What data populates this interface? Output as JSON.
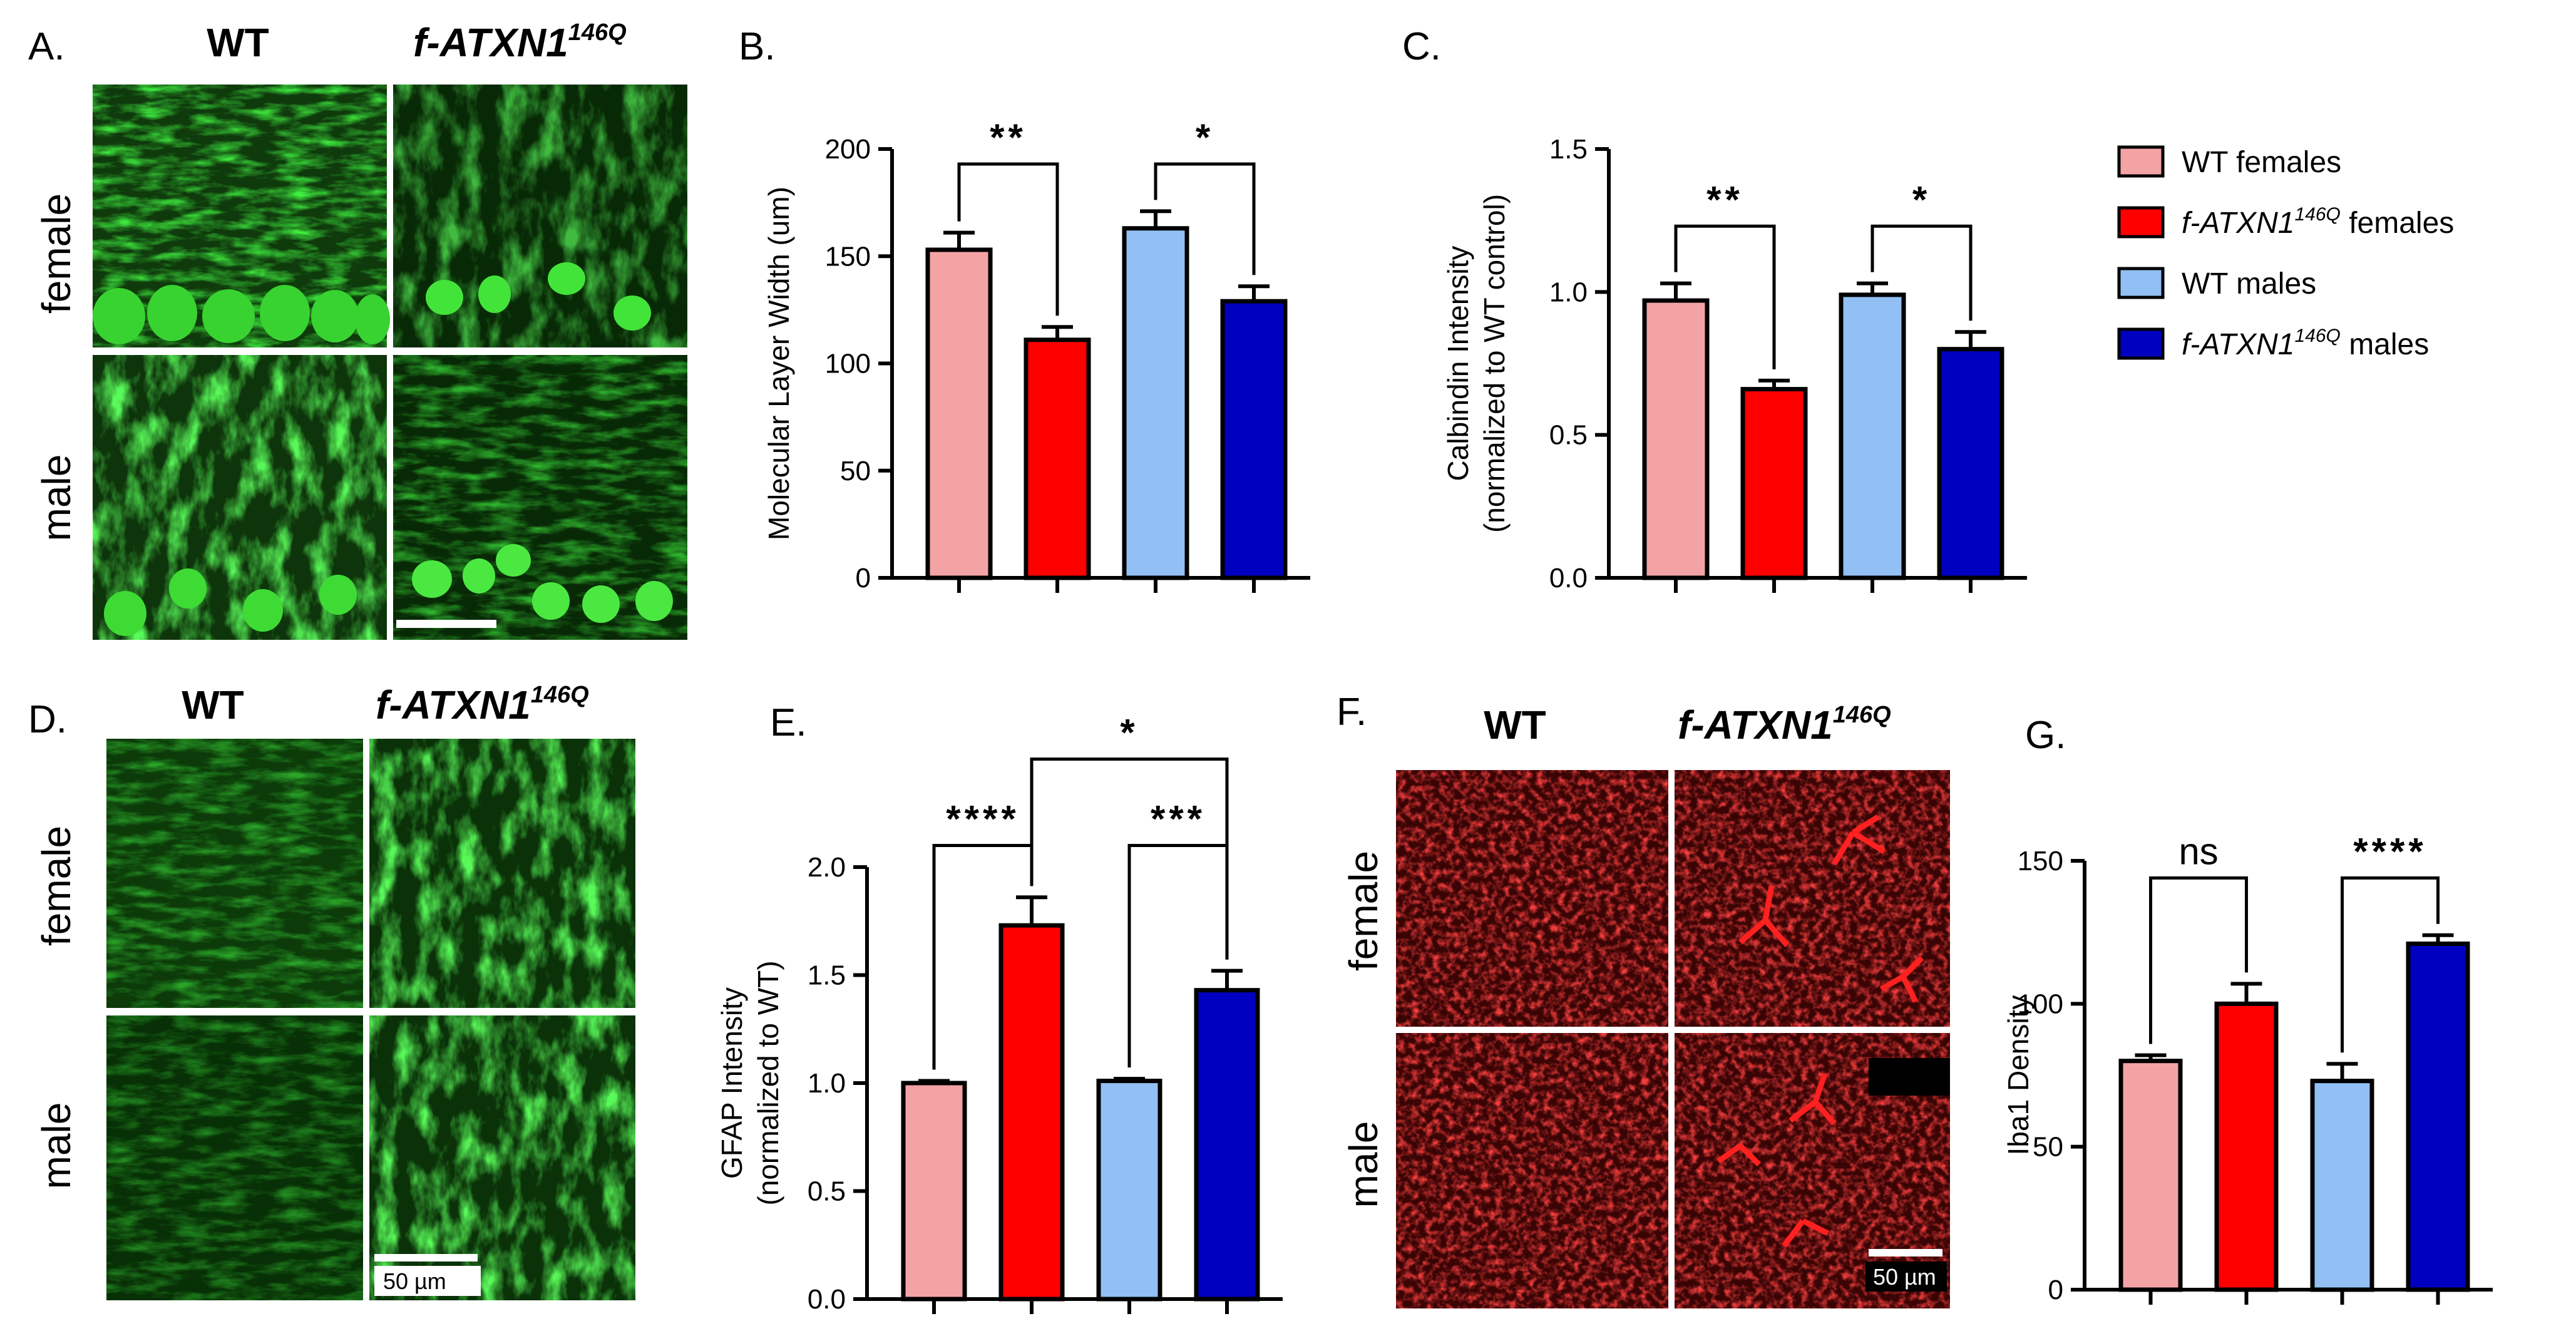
{
  "panels": {
    "A": {
      "label": "A.",
      "col_wt": "WT",
      "col_mut": "f-ATXN1",
      "col_mut_sup": "146Q",
      "row_female": "female",
      "row_male": "male"
    },
    "D": {
      "label": "D.",
      "col_wt": "WT",
      "col_mut": "f-ATXN1",
      "col_mut_sup": "146Q",
      "row_female": "female",
      "row_male": "male",
      "scale_bar": "50 µm"
    },
    "F": {
      "label": "F.",
      "col_wt": "WT",
      "col_mut": "f-ATXN1",
      "col_mut_sup": "146Q",
      "row_female": "female",
      "row_male": "male",
      "scale_bar": "50 µm"
    }
  },
  "legend": {
    "items": [
      {
        "pre": "WT females",
        "sup": "",
        "post": "",
        "color": "#f4a3a5"
      },
      {
        "pre": "f-ATXN1",
        "sup": "146Q",
        "post": " females",
        "color": "#ff0000"
      },
      {
        "pre": "WT males",
        "sup": "",
        "post": "",
        "color": "#92c0f5"
      },
      {
        "pre": "f-ATXN1",
        "sup": "146Q",
        "post": " males",
        "color": "#0000c0"
      }
    ]
  },
  "chart_data": [
    {
      "panel": "B.",
      "type": "bar",
      "ylabel": [
        "Molecular Layer Width (um)"
      ],
      "ylim": [
        0,
        200
      ],
      "yticks": [
        0,
        50,
        100,
        150,
        200
      ],
      "ytick_labels": [
        "0",
        "50",
        "100",
        "150",
        "200"
      ],
      "categories": [
        "WT females",
        "f-ATXN1 146Q females",
        "WT males",
        "f-ATXN1 146Q males"
      ],
      "values": [
        153,
        111,
        163,
        129
      ],
      "errors": [
        8,
        6,
        8,
        7
      ],
      "colors": [
        "#f4a3a5",
        "#ff0000",
        "#92c0f5",
        "#0000c0"
      ],
      "comparisons": [
        {
          "from": 0,
          "to": 1,
          "label": "**",
          "y": 193
        },
        {
          "from": 2,
          "to": 3,
          "label": "*",
          "y": 193
        }
      ]
    },
    {
      "panel": "C.",
      "type": "bar",
      "ylabel": [
        "Calbindin Intensity",
        "(normalized to WT control)"
      ],
      "ylim": [
        0,
        1.5
      ],
      "yticks": [
        0,
        0.5,
        1.0,
        1.5
      ],
      "ytick_labels": [
        "0.0",
        "0.5",
        "1.0",
        "1.5"
      ],
      "categories": [
        "WT females",
        "f-ATXN1 146Q females",
        "WT males",
        "f-ATXN1 146Q males"
      ],
      "values": [
        0.97,
        0.66,
        0.99,
        0.8
      ],
      "errors": [
        0.06,
        0.03,
        0.04,
        0.06
      ],
      "colors": [
        "#f4a3a5",
        "#ff0000",
        "#92c0f5",
        "#0000c0"
      ],
      "comparisons": [
        {
          "from": 0,
          "to": 1,
          "label": "**",
          "y": 1.23
        },
        {
          "from": 2,
          "to": 3,
          "label": "*",
          "y": 1.23
        }
      ]
    },
    {
      "panel": "E.",
      "type": "bar",
      "ylabel": [
        "GFAP Intensity",
        "(normalized to WT)"
      ],
      "ylim": [
        0,
        2.0
      ],
      "yticks": [
        0,
        0.5,
        1.0,
        1.5,
        2.0
      ],
      "ytick_labels": [
        "0.0",
        "0.5",
        "1.0",
        "1.5",
        "2.0"
      ],
      "categories": [
        "WT females",
        "f-ATXN1 146Q females",
        "WT males",
        "f-ATXN1 146Q males"
      ],
      "values": [
        1.0,
        1.73,
        1.01,
        1.43
      ],
      "errors": [
        0.01,
        0.13,
        0.01,
        0.09
      ],
      "colors": [
        "#f4a3a5",
        "#ff0000",
        "#92c0f5",
        "#0000c0"
      ],
      "comparisons": [
        {
          "from": 0,
          "to": 1,
          "label": "****",
          "y": 2.1
        },
        {
          "from": 2,
          "to": 3,
          "label": "***",
          "y": 2.1
        },
        {
          "from": 1,
          "to": 3,
          "label": "*",
          "y": 2.5
        }
      ]
    },
    {
      "panel": "G.",
      "type": "bar",
      "ylabel": [
        "Iba1 Density"
      ],
      "ylim": [
        0,
        150
      ],
      "yticks": [
        0,
        50,
        100,
        150
      ],
      "ytick_labels": [
        "0",
        "50",
        "100",
        "150"
      ],
      "categories": [
        "WT females",
        "f-ATXN1 146Q females",
        "WT males",
        "f-ATXN1 146Q males"
      ],
      "values": [
        80,
        100,
        73,
        121
      ],
      "errors": [
        2,
        7,
        6,
        3
      ],
      "colors": [
        "#f4a3a5",
        "#ff0000",
        "#92c0f5",
        "#0000c0"
      ],
      "comparisons": [
        {
          "from": 0,
          "to": 1,
          "label": "ns",
          "y": 144
        },
        {
          "from": 2,
          "to": 3,
          "label": "****",
          "y": 144
        }
      ]
    }
  ]
}
